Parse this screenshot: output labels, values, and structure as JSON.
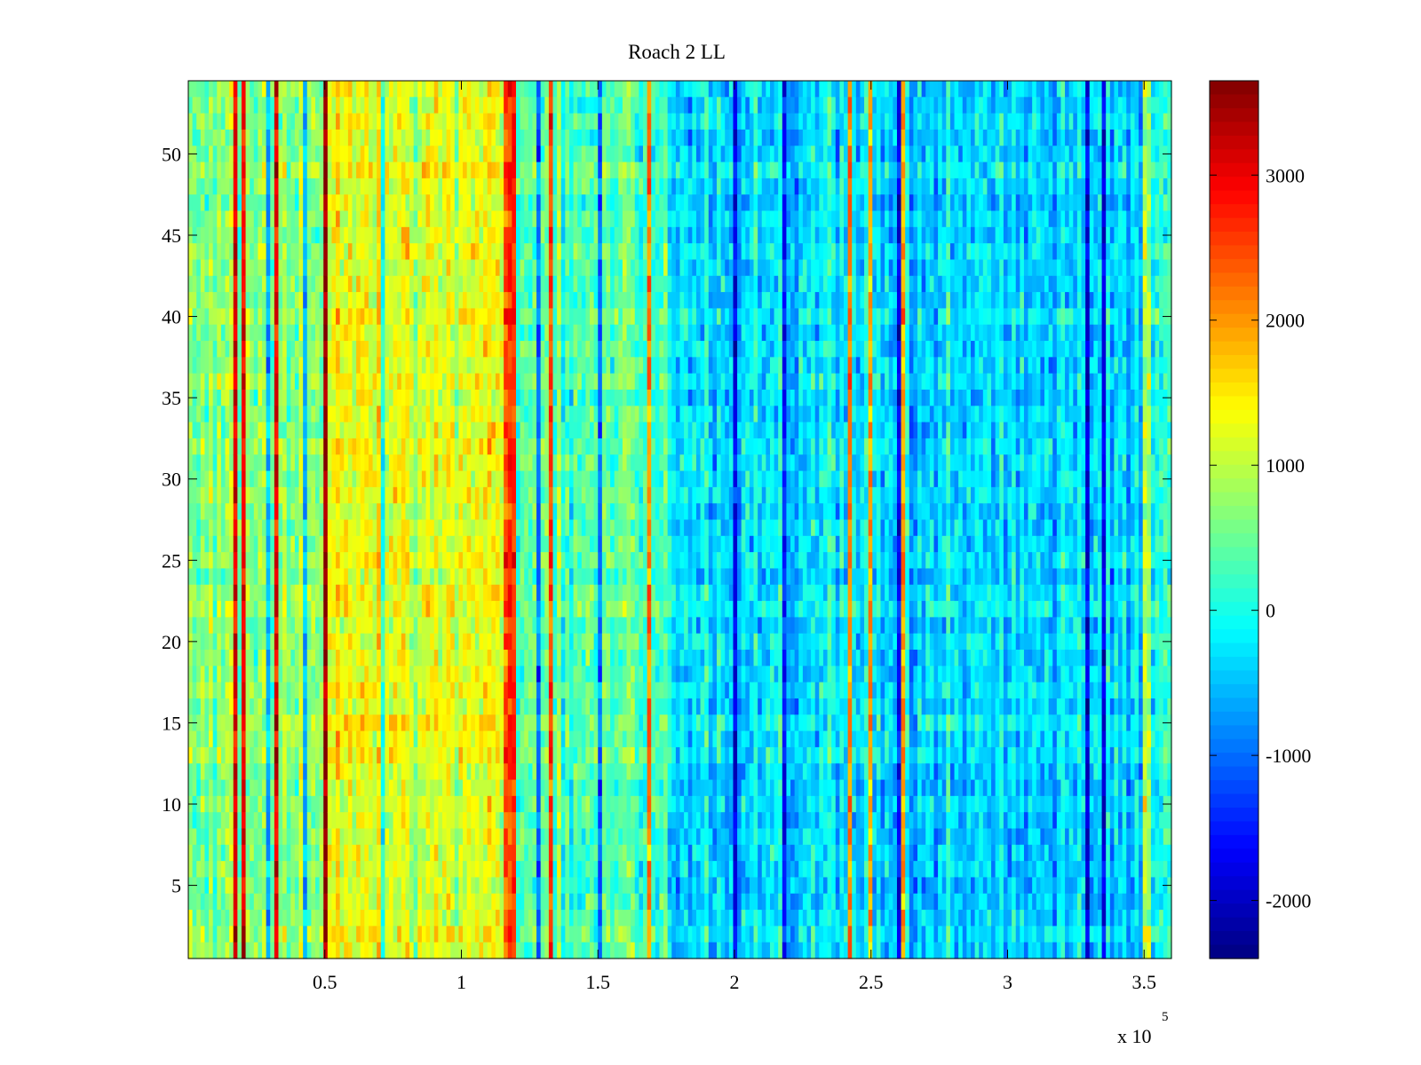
{
  "chart_data": {
    "type": "heatmap",
    "title": "Roach 2 LL",
    "xlabel": "",
    "ylabel": "",
    "x_multiplier_label": "x 10",
    "x_multiplier_exponent": "5",
    "xlim": [
      0,
      360000
    ],
    "ylim": [
      0.5,
      54.5
    ],
    "x_ticks": [
      {
        "value": 50000,
        "label": "0.5"
      },
      {
        "value": 100000,
        "label": "1"
      },
      {
        "value": 150000,
        "label": "1.5"
      },
      {
        "value": 200000,
        "label": "2"
      },
      {
        "value": 250000,
        "label": "2.5"
      },
      {
        "value": 300000,
        "label": "3"
      },
      {
        "value": 350000,
        "label": "3.5"
      }
    ],
    "y_ticks": [
      {
        "value": 5,
        "label": "5"
      },
      {
        "value": 10,
        "label": "10"
      },
      {
        "value": 15,
        "label": "15"
      },
      {
        "value": 20,
        "label": "20"
      },
      {
        "value": 25,
        "label": "25"
      },
      {
        "value": 30,
        "label": "30"
      },
      {
        "value": 35,
        "label": "35"
      },
      {
        "value": 40,
        "label": "40"
      },
      {
        "value": 45,
        "label": "45"
      },
      {
        "value": 50,
        "label": "50"
      }
    ],
    "colorbar": {
      "colormap": "jet",
      "clim": [
        -2400,
        3650
      ],
      "ticks": [
        {
          "value": 3000,
          "label": "3000"
        },
        {
          "value": 2000,
          "label": "2000"
        },
        {
          "value": 1000,
          "label": "1000"
        },
        {
          "value": 0,
          "label": "0"
        },
        {
          "value": -1000,
          "label": "-1000"
        },
        {
          "value": -2000,
          "label": "-2000"
        }
      ]
    },
    "rows": 54,
    "regions": [
      {
        "x_start": 0,
        "x_end": 50000,
        "mean_value": 600
      },
      {
        "x_start": 50000,
        "x_end": 115000,
        "mean_value": 1250
      },
      {
        "x_start": 115000,
        "x_end": 175000,
        "mean_value": 300
      },
      {
        "x_start": 175000,
        "x_end": 350000,
        "mean_value": -350
      },
      {
        "x_start": 350000,
        "x_end": 352000,
        "mean_value": 1000
      },
      {
        "x_start": 352000,
        "x_end": 360000,
        "mean_value": -250
      }
    ],
    "grid": false,
    "legend": "none"
  }
}
